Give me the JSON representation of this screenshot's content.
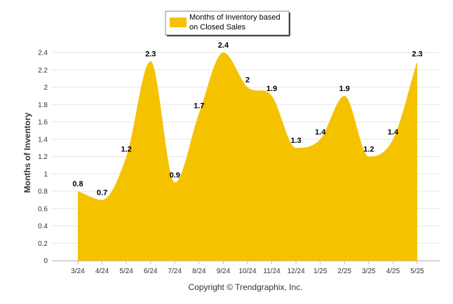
{
  "chart_data": {
    "type": "area",
    "title": "",
    "xlabel": "",
    "ylabel": "Months of Inventory",
    "categories": [
      "3/24",
      "4/24",
      "5/24",
      "6/24",
      "7/24",
      "8/24",
      "9/24",
      "10/24",
      "11/24",
      "12/24",
      "1/25",
      "2/25",
      "3/25",
      "4/25",
      "5/25"
    ],
    "series": [
      {
        "name": "Months of Inventory based on Closed Sales",
        "values": [
          0.8,
          0.7,
          1.2,
          2.3,
          0.9,
          1.7,
          2.4,
          2,
          1.9,
          1.3,
          1.4,
          1.9,
          1.2,
          1.4,
          2.3
        ],
        "color": "#F5C200"
      }
    ],
    "ylim": [
      0,
      2.4
    ],
    "yticks": [
      "0",
      "0.2",
      "0.4",
      "0.6",
      "0.8",
      "1",
      "1.2",
      "1.4",
      "1.6",
      "1.8",
      "2",
      "2.2",
      "2.4"
    ],
    "grid": true,
    "legend": "top-center"
  },
  "legend": {
    "line1": "Months of Inventory based",
    "line2": "on Closed Sales"
  },
  "footer": "Copyright © Trendgraphix, Inc."
}
